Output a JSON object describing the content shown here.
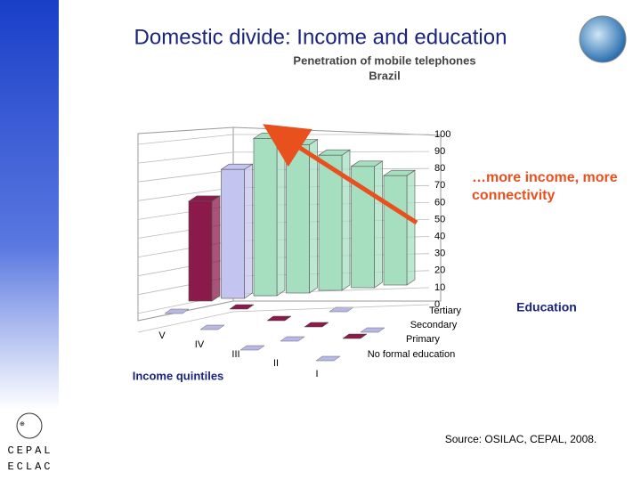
{
  "header": {
    "title": "Domestic divide: Income and education"
  },
  "chart_data": {
    "type": "bar3d",
    "title": "Penetration of mobile telephones",
    "subtitle": "Brazil",
    "categories": [
      null,
      null,
      null,
      null,
      null,
      null,
      null
    ],
    "values": [
      59,
      79,
      100,
      98,
      93,
      87,
      82
    ],
    "colors": [
      "#8b1a4a",
      "#c4c4f0",
      "#a6dfc0",
      "#a6dfc0",
      "#a6dfc0",
      "#a6dfc0",
      "#a6dfc0"
    ],
    "ylim": [
      0,
      100
    ],
    "yticks": [
      0,
      10,
      20,
      30,
      40,
      50,
      60,
      70,
      80,
      90,
      100
    ],
    "grid": true,
    "x_axis_label": "Income quintiles",
    "x_labels": [
      "V",
      "IV",
      "III",
      "II",
      "I"
    ],
    "depth_axis_label": "Education",
    "depth_labels": [
      "Tertiary",
      "Secondary",
      "Primary",
      "No formal education"
    ],
    "annotation": "…more income, more connectivity"
  },
  "footer": {
    "source": "Source: OSILAC, CEPAL, 2008.",
    "logo_top": "CEPAL",
    "logo_bottom": "ECLAC"
  }
}
